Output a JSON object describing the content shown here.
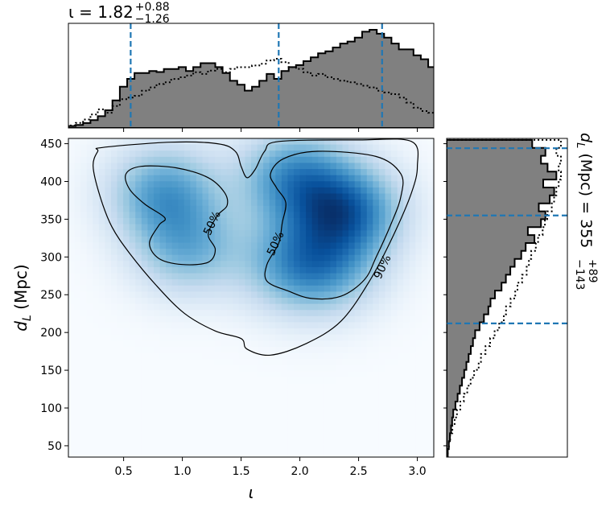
{
  "chart_data": {
    "type": "corner",
    "joint": {
      "type": "heatmap",
      "xlabel": "ι",
      "ylabel": "d_L (Mpc)",
      "xlim": [
        0.03,
        3.14
      ],
      "ylim": [
        35,
        457
      ],
      "xticks": [
        "0.5",
        "1.0",
        "1.5",
        "2.0",
        "2.5",
        "3.0"
      ],
      "yticks": [
        "50",
        "100",
        "150",
        "200",
        "250",
        "300",
        "350",
        "400",
        "450"
      ],
      "colormap": "Blues",
      "density_peaks": [
        {
          "x": 0.85,
          "y": 385,
          "w": 0.7
        },
        {
          "x": 1.05,
          "y": 312,
          "w": 0.55
        },
        {
          "x": 1.95,
          "y": 405,
          "w": 0.75
        },
        {
          "x": 2.38,
          "y": 360,
          "w": 1.0
        },
        {
          "x": 1.95,
          "y": 290,
          "w": 0.55
        },
        {
          "x": 2.25,
          "y": 285,
          "w": 0.45
        }
      ],
      "contours": [
        {
          "label": "90%",
          "label_at": {
            "x": 2.7,
            "y": 287
          },
          "points": [
            [
              0.28,
              440
            ],
            [
              0.32,
              445
            ],
            [
              0.9,
              452
            ],
            [
              1.3,
              450
            ],
            [
              1.45,
              440
            ],
            [
              1.5,
              420
            ],
            [
              1.55,
              405
            ],
            [
              1.62,
              416
            ],
            [
              1.7,
              440
            ],
            [
              1.82,
              453
            ],
            [
              2.5,
              455
            ],
            [
              2.95,
              453
            ],
            [
              3.0,
              420
            ],
            [
              2.95,
              385
            ],
            [
              2.8,
              330
            ],
            [
              2.6,
              270
            ],
            [
              2.35,
              215
            ],
            [
              2.05,
              185
            ],
            [
              1.75,
              170
            ],
            [
              1.55,
              178
            ],
            [
              1.5,
              192
            ],
            [
              1.28,
              202
            ],
            [
              1.02,
              225
            ],
            [
              0.78,
              262
            ],
            [
              0.55,
              305
            ],
            [
              0.4,
              340
            ],
            [
              0.3,
              380
            ],
            [
              0.24,
              420
            ],
            [
              0.28,
              440
            ]
          ]
        },
        {
          "label": "50%",
          "label_at": {
            "x": 1.25,
            "y": 345
          },
          "points": [
            [
              0.52,
              410
            ],
            [
              0.65,
              420
            ],
            [
              0.95,
              418
            ],
            [
              1.22,
              405
            ],
            [
              1.36,
              385
            ],
            [
              1.38,
              368
            ],
            [
              1.3,
              355
            ],
            [
              1.22,
              330
            ],
            [
              1.28,
              310
            ],
            [
              1.22,
              293
            ],
            [
              1.0,
              290
            ],
            [
              0.8,
              298
            ],
            [
              0.72,
              318
            ],
            [
              0.8,
              342
            ],
            [
              0.85,
              352
            ],
            [
              0.68,
              370
            ],
            [
              0.55,
              390
            ],
            [
              0.52,
              410
            ]
          ]
        },
        {
          "label": "50%",
          "label_at": {
            "x": 1.79,
            "y": 318
          },
          "points": [
            [
              1.75,
              410
            ],
            [
              1.86,
              430
            ],
            [
              2.15,
              440
            ],
            [
              2.65,
              433
            ],
            [
              2.86,
              410
            ],
            [
              2.86,
              380
            ],
            [
              2.78,
              345
            ],
            [
              2.65,
              300
            ],
            [
              2.55,
              270
            ],
            [
              2.35,
              248
            ],
            [
              2.1,
              245
            ],
            [
              1.9,
              255
            ],
            [
              1.72,
              268
            ],
            [
              1.72,
              290
            ],
            [
              1.82,
              318
            ],
            [
              1.85,
              345
            ],
            [
              1.88,
              372
            ],
            [
              1.8,
              392
            ],
            [
              1.75,
              410
            ]
          ]
        }
      ]
    },
    "top_marginal": {
      "type": "histogram",
      "title": "ι = 1.82",
      "title_sup": "+0.88",
      "title_sub": "−1.26",
      "bin_edges_start": 0.03,
      "bin_width": 0.0625,
      "posterior": [
        0.02,
        0.03,
        0.05,
        0.08,
        0.12,
        0.18,
        0.28,
        0.42,
        0.5,
        0.56,
        0.56,
        0.58,
        0.57,
        0.6,
        0.6,
        0.62,
        0.58,
        0.62,
        0.66,
        0.66,
        0.62,
        0.56,
        0.48,
        0.44,
        0.38,
        0.42,
        0.48,
        0.55,
        0.5,
        0.58,
        0.62,
        0.64,
        0.68,
        0.72,
        0.76,
        0.78,
        0.82,
        0.86,
        0.88,
        0.92,
        0.98,
        1.0,
        0.96,
        0.92,
        0.86,
        0.8,
        0.8,
        0.74,
        0.7,
        0.62,
        0.46,
        0.3,
        0.2,
        0.12,
        0.08,
        0.04,
        0.02
      ],
      "prior": [
        0.03,
        0.06,
        0.1,
        0.16,
        0.22,
        0.18,
        0.26,
        0.34,
        0.36,
        0.38,
        0.44,
        0.48,
        0.52,
        0.54,
        0.58,
        0.6,
        0.62,
        0.66,
        0.64,
        0.68,
        0.7,
        0.66,
        0.7,
        0.72,
        0.72,
        0.74,
        0.76,
        0.8,
        0.82,
        0.78,
        0.72,
        0.7,
        0.66,
        0.62,
        0.64,
        0.6,
        0.58,
        0.56,
        0.54,
        0.52,
        0.5,
        0.48,
        0.44,
        0.42,
        0.4,
        0.36,
        0.3,
        0.24,
        0.2,
        0.18,
        0.14,
        0.1,
        0.08,
        0.06,
        0.04,
        0.03,
        0.02
      ],
      "quantiles": [
        0.56,
        1.82,
        2.7
      ]
    },
    "right_marginal": {
      "type": "histogram",
      "orientation": "horizontal",
      "label": "d_L (Mpc) = 355",
      "label_sup": "+89",
      "label_sub": "−143",
      "bin_edges_start": 35,
      "bin_width": 10.5,
      "posterior": [
        0.01,
        0.02,
        0.03,
        0.04,
        0.05,
        0.06,
        0.08,
        0.1,
        0.12,
        0.14,
        0.16,
        0.18,
        0.2,
        0.22,
        0.24,
        0.26,
        0.3,
        0.34,
        0.38,
        0.4,
        0.44,
        0.5,
        0.54,
        0.58,
        0.62,
        0.68,
        0.72,
        0.8,
        0.74,
        0.86,
        0.9,
        0.84,
        0.94,
        0.98,
        0.88,
        1.0,
        0.92,
        0.86,
        0.9,
        0.78
      ],
      "prior": [
        0.01,
        0.02,
        0.03,
        0.05,
        0.07,
        0.09,
        0.12,
        0.15,
        0.18,
        0.21,
        0.24,
        0.28,
        0.3,
        0.34,
        0.38,
        0.42,
        0.46,
        0.5,
        0.52,
        0.56,
        0.6,
        0.62,
        0.66,
        0.7,
        0.72,
        0.74,
        0.78,
        0.8,
        0.84,
        0.86,
        0.88,
        0.92,
        0.94,
        0.96,
        0.98,
        1.0,
        0.98,
        1.0,
        0.96,
        1.0
      ],
      "quantiles": [
        212,
        355,
        444
      ]
    },
    "colors": {
      "posterior_fill": "#808080",
      "quantile_line": "#1f77b4",
      "contour": "#000000"
    }
  }
}
